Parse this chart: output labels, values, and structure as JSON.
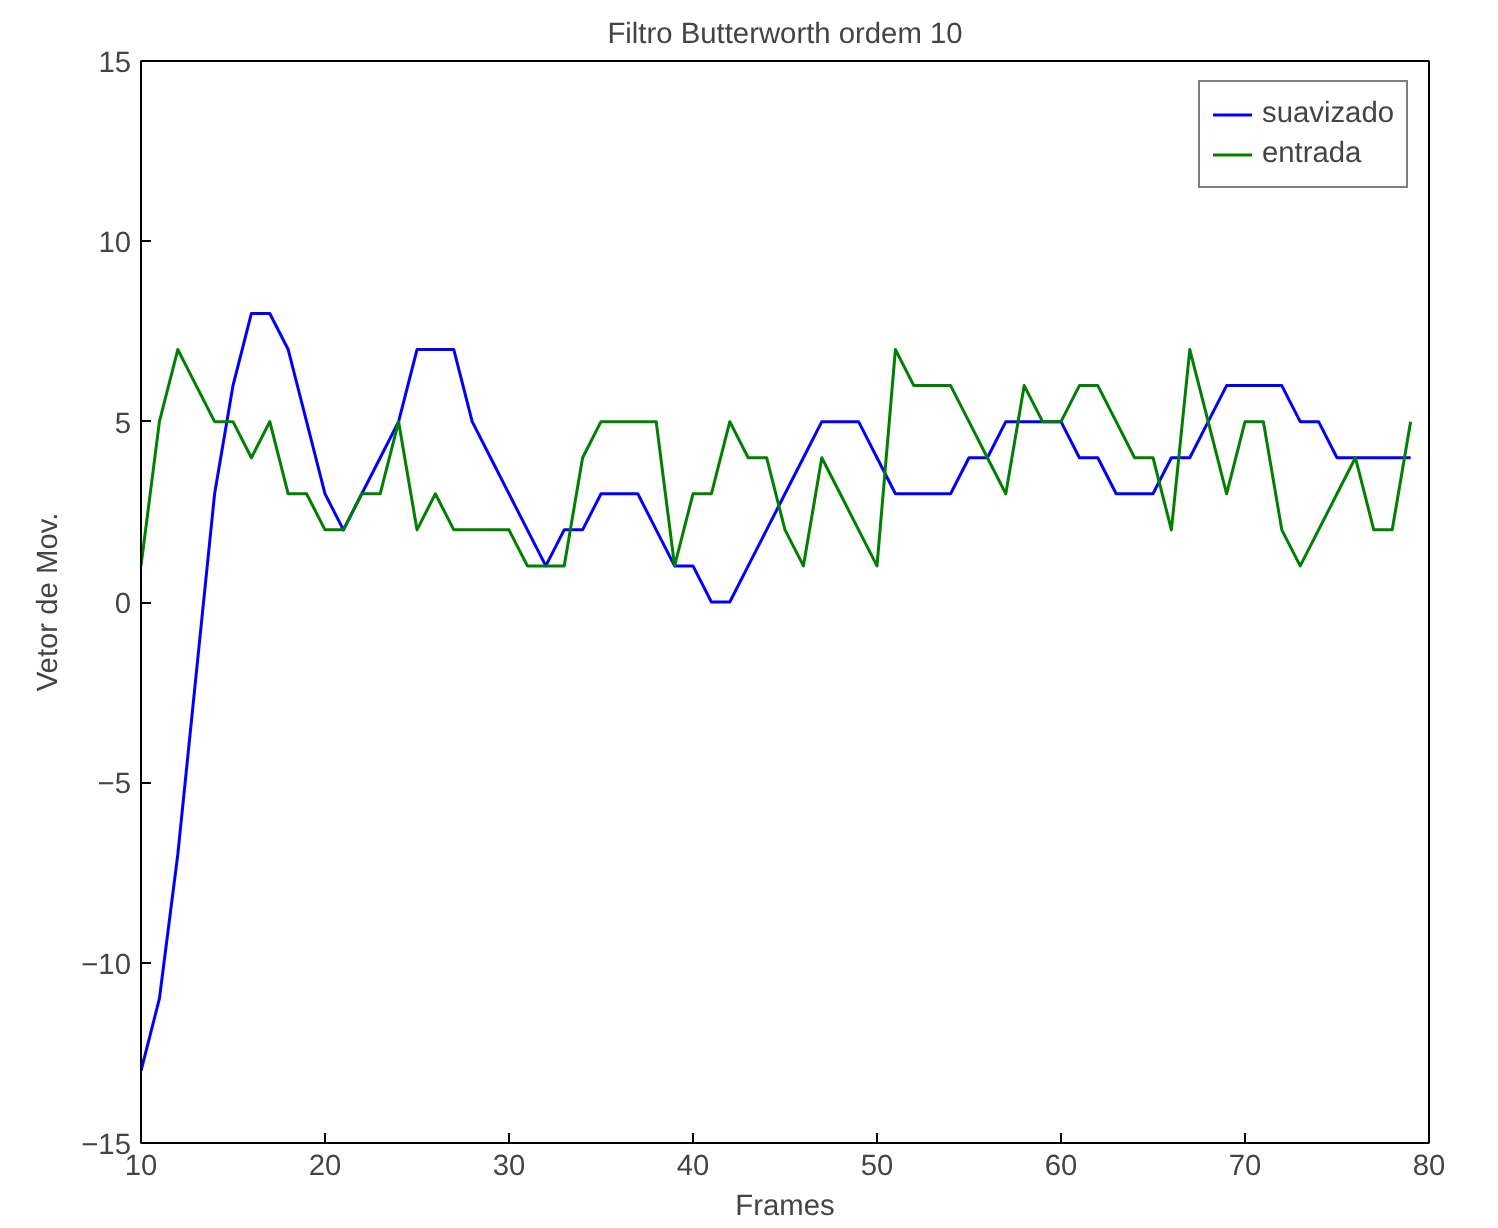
{
  "chart_data": {
    "type": "line",
    "title": "Filtro Butterworth ordem 10",
    "xlabel": "Frames",
    "ylabel": "Vetor de Mov.",
    "x": [
      10,
      11,
      12,
      13,
      14,
      15,
      16,
      17,
      18,
      19,
      20,
      21,
      22,
      23,
      24,
      25,
      26,
      27,
      28,
      29,
      30,
      31,
      32,
      33,
      34,
      35,
      36,
      37,
      38,
      39,
      40,
      41,
      42,
      43,
      44,
      45,
      46,
      47,
      48,
      49,
      50,
      51,
      52,
      53,
      54,
      55,
      56,
      57,
      58,
      59,
      60,
      61,
      62,
      63,
      64,
      65,
      66,
      67,
      68,
      69,
      70,
      71,
      72,
      73,
      74,
      75,
      76,
      77,
      78,
      79
    ],
    "series": [
      {
        "name": "suavizado",
        "color": "#0000ff",
        "values": [
          -13,
          -11,
          -7,
          -2,
          3,
          6,
          8,
          8,
          7,
          5,
          3,
          2,
          3,
          4,
          5,
          7,
          7,
          7,
          5,
          4,
          3,
          2,
          1,
          2,
          2,
          3,
          3,
          3,
          2,
          1,
          1,
          0,
          0,
          1,
          2,
          3,
          4,
          5,
          5,
          5,
          4,
          3,
          3,
          3,
          3,
          4,
          4,
          5,
          5,
          5,
          5,
          4,
          4,
          3,
          3,
          3,
          4,
          4,
          5,
          6,
          6,
          6,
          6,
          5,
          5,
          4,
          4,
          4,
          4,
          4
        ]
      },
      {
        "name": "entrada",
        "color": "#008000",
        "values": [
          1,
          5,
          7,
          6,
          5,
          5,
          4,
          5,
          3,
          3,
          2,
          2,
          3,
          3,
          5,
          2,
          3,
          2,
          2,
          2,
          2,
          1,
          1,
          1,
          4,
          5,
          5,
          5,
          5,
          1,
          3,
          3,
          5,
          4,
          4,
          2,
          1,
          4,
          3,
          2,
          1,
          7,
          6,
          6,
          6,
          5,
          4,
          3,
          6,
          5,
          5,
          6,
          6,
          5,
          4,
          4,
          2,
          7,
          5,
          3,
          5,
          5,
          2,
          1,
          2,
          3,
          4,
          2,
          2,
          5
        ]
      }
    ],
    "xlim": [
      10,
      80
    ],
    "ylim": [
      -15,
      15
    ],
    "xticks": [
      10,
      20,
      30,
      40,
      50,
      60,
      70,
      80
    ],
    "yticks": [
      -15,
      -10,
      -5,
      0,
      5,
      10,
      15
    ],
    "grid": false,
    "legend": "top right",
    "line_style": "solid",
    "marker": "none"
  }
}
